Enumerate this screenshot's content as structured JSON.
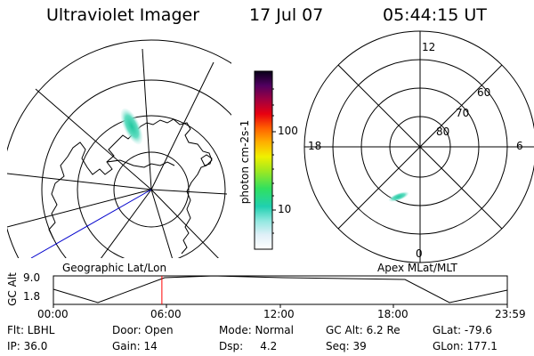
{
  "header": {
    "instrument": "Ultraviolet Imager",
    "date": "17 Jul 07",
    "time": "05:44:15 UT"
  },
  "colorbar": {
    "unit_label": "photon cm-2s-1",
    "ticks": [
      "100",
      "10"
    ]
  },
  "geo_map": {
    "label": "Geographic Lat/Lon"
  },
  "polar_plot": {
    "label": "Apex MLat/MLT",
    "mlt_labels": {
      "top": "12",
      "left": "18",
      "right": "6",
      "bottom": "0"
    },
    "lat_labels": [
      "60",
      "70",
      "80"
    ]
  },
  "altitude_strip": {
    "ylabel": "GC Alt",
    "ymax": "9.0",
    "ymin": "1.8",
    "x_ticks": [
      "00:00",
      "06:00",
      "12:00",
      "18:00",
      "23:59"
    ],
    "current_time_fraction": 0.239
  },
  "status": {
    "row1": [
      {
        "key": "filter",
        "text": "Flt: LBHL"
      },
      {
        "key": "door",
        "text": "Door: Open"
      },
      {
        "key": "mode",
        "text": "Mode: Normal"
      },
      {
        "key": "gcalt",
        "text": "GC Alt: 6.2 Re"
      },
      {
        "key": "glat",
        "text": "GLat: -79.6"
      }
    ],
    "row2": [
      {
        "key": "ip",
        "text": "IP: 36.0"
      },
      {
        "key": "gain",
        "text": "Gain: 14"
      },
      {
        "key": "dsp",
        "text": "Dsp:     4.2"
      },
      {
        "key": "seq",
        "text": "Seq: 39"
      },
      {
        "key": "glon",
        "text": "GLon: 177.1"
      }
    ]
  },
  "colors": {
    "track": "#0000cc",
    "time_marker": "#ff0000",
    "aurora": "#40d8a8"
  }
}
